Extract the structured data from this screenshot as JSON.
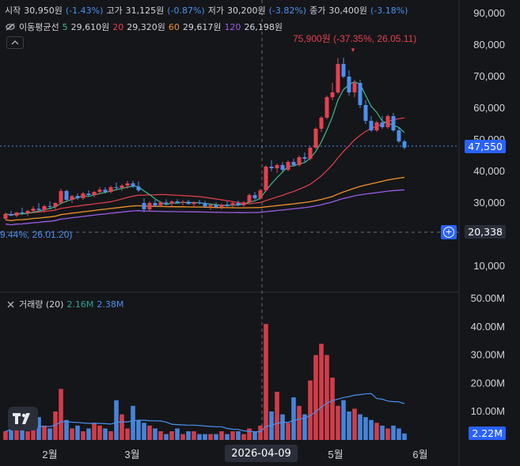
{
  "legend": {
    "open_label": "시작",
    "open_value": "30,950원",
    "open_pct": "(-1.43%)",
    "high_label": "고가",
    "high_value": "31,125원",
    "high_pct": "(-0.87%)",
    "low_label": "저가",
    "low_value": "30,200원",
    "low_pct": "(-3.82%)",
    "close_label": "종가",
    "close_value": "30,400원",
    "close_pct": "(-3.18%)",
    "ma_title": "이동평균선",
    "ma": [
      {
        "period": "5",
        "value": "29,610원",
        "color": "#3dbb8a"
      },
      {
        "period": "20",
        "value": "29,320원",
        "color": "#e5414f"
      },
      {
        "period": "60",
        "value": "29,617원",
        "color": "#f0922b"
      },
      {
        "period": "120",
        "value": "26,198원",
        "color": "#9b5de5"
      }
    ],
    "volume_title": "거래량 (20)",
    "volume_v1": "2.16M",
    "volume_v2": "2.38M"
  },
  "annotations": {
    "high_marker": "75,900원 (-37.35%, 26.05.11)",
    "low_marker": "9.44%, 26.01.20)"
  },
  "axis": {
    "price_ticks": [
      "90,000",
      "80,000",
      "70,000",
      "60,000",
      "50,000",
      "40,000",
      "30,000",
      "10,000"
    ],
    "volume_ticks": [
      "50.00M",
      "40.00M",
      "30.00M",
      "20.00M",
      "10.00M"
    ],
    "time_ticks": [
      "2월",
      "3월",
      "5월",
      "6월"
    ],
    "crosshair_date": "2026-04-09"
  },
  "tags": {
    "last_price": "47,550",
    "crosshair_price": "20,338",
    "last_volume": "2.22M"
  },
  "colors": {
    "up": "#e5414f",
    "down": "#4a90f0",
    "bg": "#151619"
  },
  "icons": [
    "eye-off-icon",
    "collapse-chevron-icon",
    "plus-circle-icon",
    "tradingview-logo-icon"
  ],
  "chart_data": {
    "type": "candlestick",
    "ylim": [
      0,
      95000
    ],
    "volume_ylim": [
      0,
      50000000
    ],
    "candles_approx": [
      [
        25000,
        27000,
        24500,
        26500
      ],
      [
        26500,
        27500,
        25800,
        26000
      ],
      [
        26000,
        27200,
        25500,
        27000
      ],
      [
        27000,
        28500,
        26200,
        26800
      ],
      [
        26800,
        27800,
        25900,
        27500
      ],
      [
        27500,
        29000,
        26800,
        28200
      ],
      [
        28200,
        30000,
        27500,
        27800
      ],
      [
        27800,
        29500,
        27000,
        29000
      ],
      [
        29000,
        30500,
        28000,
        28800
      ],
      [
        28800,
        30200,
        28000,
        30000
      ],
      [
        30000,
        34500,
        29500,
        33800
      ],
      [
        33800,
        34200,
        30500,
        31000
      ],
      [
        31000,
        32500,
        30000,
        32200
      ],
      [
        32200,
        33000,
        31000,
        31500
      ],
      [
        31500,
        33500,
        31000,
        33000
      ],
      [
        33000,
        34000,
        32000,
        32500
      ],
      [
        32500,
        33800,
        31800,
        33500
      ],
      [
        33500,
        35000,
        32800,
        34200
      ],
      [
        34200,
        35000,
        33000,
        33500
      ],
      [
        33500,
        35500,
        33000,
        35000
      ],
      [
        35000,
        36500,
        34200,
        34800
      ],
      [
        34800,
        36000,
        33800,
        35500
      ],
      [
        35500,
        37000,
        34500,
        36200
      ],
      [
        36200,
        37000,
        34800,
        35200
      ],
      [
        35200,
        36800,
        33500,
        34000
      ],
      [
        30000,
        31500,
        27000,
        28000
      ],
      [
        28000,
        30500,
        27500,
        30000
      ],
      [
        30000,
        31000,
        28800,
        29200
      ],
      [
        29200,
        30500,
        28600,
        30200
      ],
      [
        30200,
        31200,
        29500,
        29800
      ],
      [
        29800,
        30800,
        29000,
        30500
      ],
      [
        30500,
        31200,
        29800,
        30000
      ],
      [
        30000,
        30900,
        29200,
        30400
      ],
      [
        30400,
        31000,
        29500,
        29700
      ],
      [
        29700,
        30500,
        28800,
        30200
      ],
      [
        30200,
        31000,
        29500,
        30000
      ],
      [
        30000,
        30700,
        28500,
        28900
      ],
      [
        28900,
        29800,
        27800,
        29400
      ],
      [
        29400,
        30200,
        28500,
        28700
      ],
      [
        28700,
        29800,
        28000,
        29500
      ],
      [
        29500,
        30500,
        28800,
        29200
      ],
      [
        29200,
        30400,
        28600,
        30000
      ],
      [
        30000,
        30800,
        29000,
        29300
      ],
      [
        29300,
        30600,
        28800,
        30200
      ],
      [
        30200,
        33000,
        30000,
        32500
      ],
      [
        32500,
        33500,
        31000,
        31500
      ],
      [
        31500,
        34500,
        31000,
        34000
      ],
      [
        34000,
        42000,
        33500,
        41500
      ],
      [
        41500,
        43500,
        40000,
        41000
      ],
      [
        41000,
        42500,
        39500,
        42000
      ],
      [
        42000,
        43000,
        40000,
        40500
      ],
      [
        40500,
        43500,
        40000,
        43000
      ],
      [
        43000,
        44000,
        41500,
        42000
      ],
      [
        42000,
        45000,
        41500,
        44500
      ],
      [
        44500,
        46000,
        43000,
        44000
      ],
      [
        44000,
        48000,
        43500,
        47500
      ],
      [
        47500,
        54000,
        47000,
        53500
      ],
      [
        53500,
        57500,
        52500,
        57000
      ],
      [
        57000,
        64000,
        56500,
        63500
      ],
      [
        63500,
        68000,
        62500,
        65000
      ],
      [
        65000,
        75900,
        64500,
        74000
      ],
      [
        74000,
        76000,
        69500,
        70000
      ],
      [
        70000,
        72000,
        64000,
        65000
      ],
      [
        65000,
        69000,
        63500,
        68000
      ],
      [
        68000,
        69000,
        60000,
        61000
      ],
      [
        61000,
        62500,
        55000,
        56000
      ],
      [
        56000,
        57500,
        52500,
        53000
      ],
      [
        53000,
        56000,
        52500,
        55500
      ],
      [
        55500,
        57500,
        53500,
        54000
      ],
      [
        54000,
        58000,
        53500,
        57500
      ],
      [
        57500,
        58500,
        52500,
        53000
      ],
      [
        53000,
        54000,
        49000,
        49500
      ],
      [
        49500,
        50000,
        47000,
        47550
      ]
    ],
    "volume_approx_millions": [
      3,
      4,
      5,
      4,
      3,
      6,
      8,
      5,
      4,
      10,
      18,
      7,
      4,
      5,
      3,
      4,
      6,
      5,
      4,
      3,
      14,
      9,
      4,
      12,
      7,
      6,
      5,
      4,
      3,
      2,
      3,
      4,
      2,
      3,
      3,
      2,
      2,
      2,
      2,
      3,
      2,
      3,
      3,
      2,
      4,
      3,
      5,
      41,
      10,
      17,
      9,
      6,
      15,
      12,
      9,
      21,
      30,
      34,
      30,
      22,
      12,
      14,
      10,
      11,
      9,
      8,
      7,
      6,
      5,
      4,
      5,
      4,
      2.2
    ]
  }
}
